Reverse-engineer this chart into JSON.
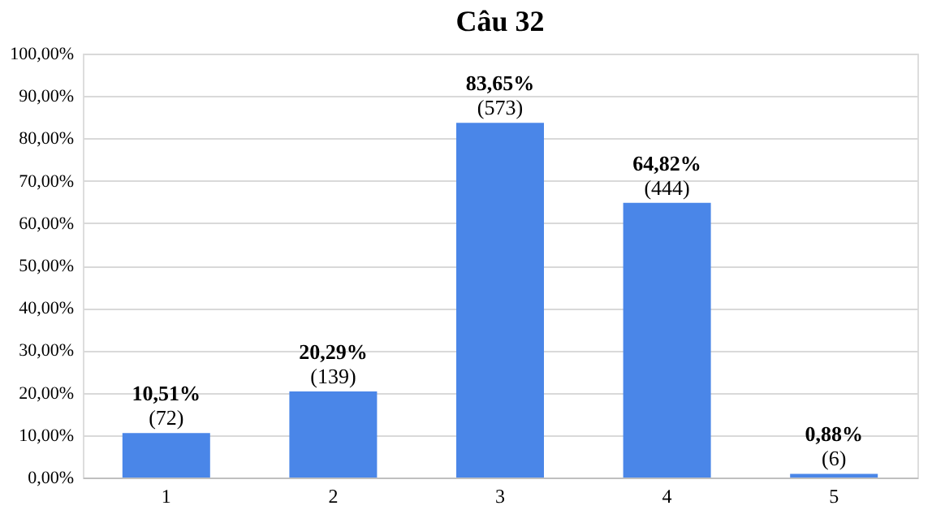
{
  "chart_data": {
    "type": "bar",
    "title": "Câu 32",
    "categories": [
      "1",
      "2",
      "3",
      "4",
      "5"
    ],
    "values": [
      10.51,
      20.29,
      83.65,
      64.82,
      0.88
    ],
    "value_labels": [
      "10,51%\n(72)",
      "20,29%\n(139)",
      "83,65%\n(573)",
      "64,82%\n(444)",
      "0,88%\n(6)"
    ],
    "color": "#4a86e8",
    "ylim": [
      0,
      100
    ],
    "yticks": [
      {
        "value": 0,
        "label": "0,00%"
      },
      {
        "value": 10,
        "label": "10,00%"
      },
      {
        "value": 20,
        "label": "20,00%"
      },
      {
        "value": 30,
        "label": "30,00%"
      },
      {
        "value": 40,
        "label": "40,00%"
      },
      {
        "value": 50,
        "label": "50,00%"
      },
      {
        "value": 60,
        "label": "60,00%"
      },
      {
        "value": 70,
        "label": "70,00%"
      },
      {
        "value": 80,
        "label": "80,00%"
      },
      {
        "value": 90,
        "label": "90,00%"
      },
      {
        "value": 100,
        "label": "100,00%"
      }
    ],
    "grid": "y"
  }
}
